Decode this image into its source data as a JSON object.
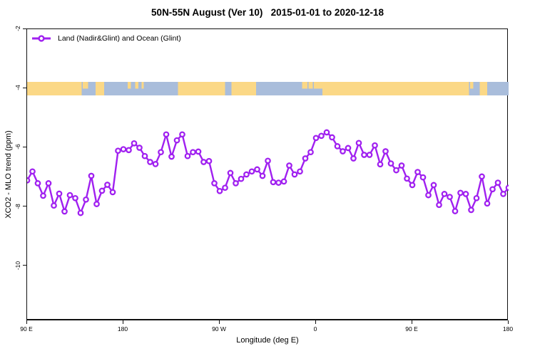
{
  "title": "50N-55N August (Ver 10)   2015-01-01 to 2020-12-18",
  "legend": {
    "label": "Land (Nadir&Glint) and Ocean (Glint)"
  },
  "axes": {
    "x_label": "Longitude (deg E)",
    "y_label": "XCO2 - MLO trend (ppm)",
    "x_ticks": [
      {
        "value": 90,
        "label": "90 E"
      },
      {
        "value": 180,
        "label": "180"
      },
      {
        "value": 270,
        "label": "90 W"
      },
      {
        "value": 360,
        "label": "0"
      },
      {
        "value": 450,
        "label": "90 E"
      },
      {
        "value": 540,
        "label": "180"
      }
    ],
    "y_ticks": [
      {
        "value": -2,
        "label": "-2"
      },
      {
        "value": -4,
        "label": "-4"
      },
      {
        "value": -6,
        "label": "-6"
      },
      {
        "value": -8,
        "label": "-8"
      },
      {
        "value": -10,
        "label": "-10"
      }
    ]
  },
  "colors": {
    "series_purple": "#A020F0",
    "marker_fill": "#ffffff",
    "land": "#FBD886",
    "ocean": "#A9BDDB",
    "axis": "#111111"
  },
  "chart_data": {
    "type": "line",
    "title": "50N-55N August (Ver 10)   2015-01-01 to 2020-12-18",
    "xlabel": "Longitude (deg E)",
    "ylabel": "XCO2 - MLO trend (ppm)",
    "xlim": [
      90,
      540
    ],
    "ylim": [
      -11.85,
      -2
    ],
    "grid": false,
    "legend_position": "top-left",
    "x": [
      90,
      95,
      100,
      105,
      110,
      115,
      120,
      125,
      130,
      135,
      140,
      145,
      150,
      155,
      160,
      165,
      170,
      175,
      180,
      185,
      190,
      195,
      200,
      205,
      210,
      215,
      220,
      225,
      230,
      235,
      240,
      245,
      250,
      255,
      260,
      265,
      270,
      275,
      280,
      285,
      290,
      295,
      300,
      305,
      310,
      315,
      320,
      325,
      330,
      335,
      340,
      345,
      350,
      355,
      360,
      365,
      370,
      375,
      380,
      385,
      390,
      395,
      400,
      405,
      410,
      415,
      420,
      425,
      430,
      435,
      440,
      445,
      450,
      455,
      460,
      465,
      470,
      475,
      480,
      485,
      490,
      495,
      500,
      505,
      510,
      515,
      520,
      525,
      530,
      535,
      540
    ],
    "series": [
      {
        "name": "Land (Nadir&Glint) and Ocean (Glint)",
        "marker": "open-circle",
        "color": "#A020F0",
        "values": [
          -7.1,
          -6.8,
          -7.2,
          -7.62,
          -7.2,
          -7.95,
          -7.55,
          -8.15,
          -7.6,
          -7.7,
          -8.2,
          -7.75,
          -6.95,
          -7.9,
          -7.45,
          -7.25,
          -7.5,
          -6.1,
          -6.05,
          -6.08,
          -5.85,
          -6.0,
          -6.28,
          -6.48,
          -6.55,
          -6.15,
          -5.55,
          -6.3,
          -5.75,
          -5.55,
          -6.28,
          -6.15,
          -6.13,
          -6.48,
          -6.45,
          -7.2,
          -7.46,
          -7.35,
          -6.85,
          -7.2,
          -7.05,
          -6.9,
          -6.8,
          -6.73,
          -6.95,
          -6.44,
          -7.16,
          -7.18,
          -7.14,
          -6.6,
          -6.9,
          -6.8,
          -6.36,
          -6.15,
          -5.67,
          -5.6,
          -5.48,
          -5.65,
          -5.95,
          -6.12,
          -6.01,
          -6.36,
          -5.84,
          -6.24,
          -6.24,
          -5.92,
          -6.56,
          -6.12,
          -6.53,
          -6.76,
          -6.6,
          -7.04,
          -7.26,
          -6.82,
          -7.0,
          -7.6,
          -7.26,
          -7.93,
          -7.56,
          -7.66,
          -8.14,
          -7.52,
          -7.56,
          -8.1,
          -7.7,
          -6.97,
          -7.88,
          -7.4,
          -7.18,
          -7.56,
          -7.35
        ]
      }
    ],
    "map_strip": {
      "description": "land/ocean band of the 50N-55N latitude zone drawn across the plot near y=-4",
      "center_value": -4,
      "land_color": "#FBD886",
      "ocean_color": "#A9BDDB",
      "ocean_span": [
        90,
        540
      ],
      "land_segments": [
        [
          90,
          141
        ],
        [
          154,
          162
        ],
        [
          231,
          275
        ],
        [
          281,
          304
        ],
        [
          366,
          503
        ],
        [
          513,
          520
        ]
      ],
      "land_patches": [
        [
          142,
          147
        ],
        [
          184,
          187
        ],
        [
          191,
          194
        ],
        [
          197,
          199
        ],
        [
          347,
          352
        ],
        [
          353,
          357
        ],
        [
          358,
          366
        ],
        [
          504,
          507
        ]
      ]
    }
  }
}
